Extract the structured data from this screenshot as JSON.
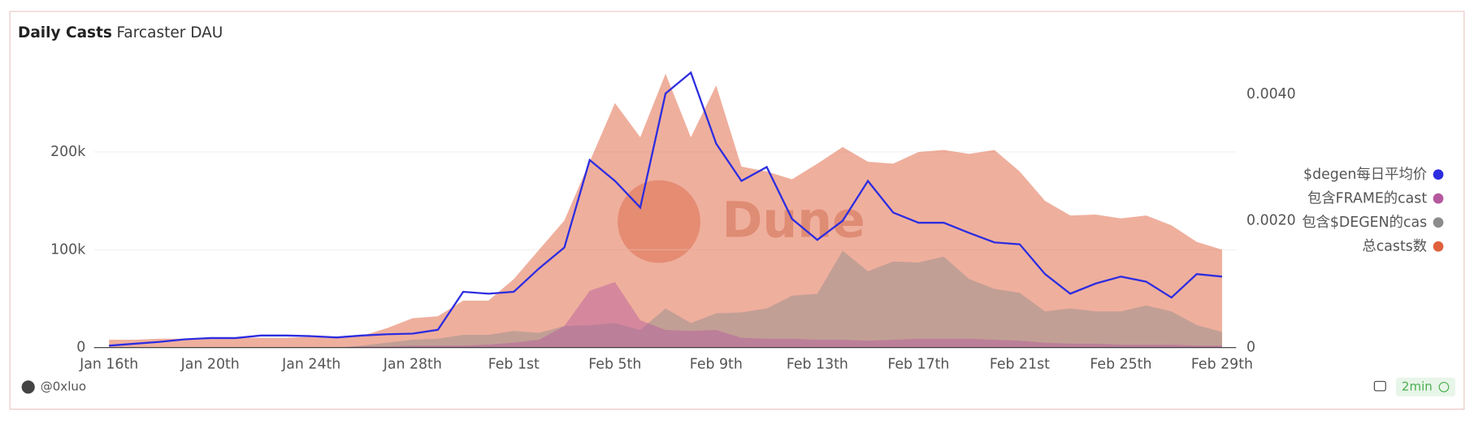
{
  "tabs": [
    "Daily Casts",
    "Farcaster DAU"
  ],
  "chart_data": {
    "type": "area",
    "watermark": "Dune",
    "categories": [
      "Jan 16th",
      null,
      null,
      null,
      "Jan 20th",
      null,
      null,
      null,
      "Jan 24th",
      null,
      null,
      null,
      "Jan 28th",
      null,
      null,
      null,
      "Feb 1st",
      null,
      null,
      null,
      "Feb 5th",
      null,
      null,
      null,
      "Feb 9th",
      null,
      null,
      null,
      "Feb 13th",
      null,
      null,
      null,
      "Feb 17th",
      null,
      null,
      null,
      "Feb 21st",
      null,
      null,
      null,
      "Feb 25th",
      null,
      null,
      null,
      "Feb 29th"
    ],
    "ylim": [
      0,
      298000
    ],
    "yticks": [
      0,
      {
        "value": 100000,
        "label": "100k"
      },
      {
        "value": 200000,
        "label": "200k"
      }
    ],
    "y2lim": [
      0,
      0.0046
    ],
    "y2ticks": [
      0,
      {
        "value": 0.002,
        "label": "0.0020"
      },
      {
        "value": 0.004,
        "label": "0.0040"
      }
    ],
    "grid": true,
    "legend": "right",
    "series": [
      {
        "name": "总casts数",
        "color": "#e0603c",
        "values": [
          8000,
          8000,
          9000,
          9000,
          10000,
          10000,
          10000,
          10000,
          11000,
          11000,
          12000,
          20000,
          30000,
          32000,
          48000,
          48000,
          70000,
          100000,
          130000,
          190000,
          250000,
          215000,
          280000,
          215000,
          268000,
          185000,
          180000,
          172000,
          188000,
          205000,
          190000,
          188000,
          200000,
          202000,
          198000,
          202000,
          180000,
          150000,
          135000,
          136000,
          132000,
          135000,
          125000,
          108000,
          100000
        ]
      },
      {
        "name": "包含$DEGEN的cas",
        "color": "#8c8c8c",
        "values": [
          0,
          0,
          0,
          0,
          0,
          0,
          0,
          0,
          0,
          0,
          2000,
          5000,
          8000,
          9000,
          13000,
          13000,
          17000,
          15000,
          22000,
          23000,
          25000,
          18000,
          40000,
          25000,
          35000,
          36000,
          40000,
          53000,
          55000,
          99000,
          78000,
          88000,
          87000,
          93000,
          70000,
          60000,
          56000,
          37000,
          40000,
          37000,
          37000,
          43000,
          37000,
          23000,
          16000
        ]
      },
      {
        "name": "包含FRAME的cast",
        "color": "#b5589e",
        "values": [
          0,
          0,
          0,
          0,
          0,
          0,
          0,
          0,
          0,
          0,
          1000,
          1000,
          2000,
          2000,
          2000,
          3000,
          5000,
          8000,
          22000,
          58000,
          67000,
          28000,
          18000,
          17000,
          18000,
          10000,
          9000,
          9000,
          8000,
          8000,
          7000,
          8000,
          9000,
          9000,
          9000,
          8000,
          7000,
          5000,
          4000,
          4000,
          3000,
          3000,
          3000,
          2000,
          2000
        ]
      },
      {
        "name": "$degen每日平均价",
        "color": "#2d2de0",
        "axis": "y2",
        "values": [
          3e-05,
          6e-05,
          9e-05,
          0.00013,
          0.00015,
          0.00015,
          0.00019,
          0.00019,
          0.00018,
          0.00016,
          0.00019,
          0.00021,
          0.00022,
          0.00028,
          0.00088,
          0.00085,
          0.00088,
          0.00125,
          0.00158,
          0.00296,
          0.00263,
          0.00221,
          0.00401,
          0.00434,
          0.00322,
          0.00263,
          0.00285,
          0.00203,
          0.0017,
          0.002,
          0.00263,
          0.00213,
          0.00197,
          0.00197,
          0.00181,
          0.00166,
          0.00163,
          0.00116,
          0.00085,
          0.00101,
          0.00112,
          0.00104,
          0.00079,
          0.00116,
          0.00112
        ]
      }
    ]
  },
  "footer": {
    "author": "@0xluo",
    "age": "2min"
  }
}
